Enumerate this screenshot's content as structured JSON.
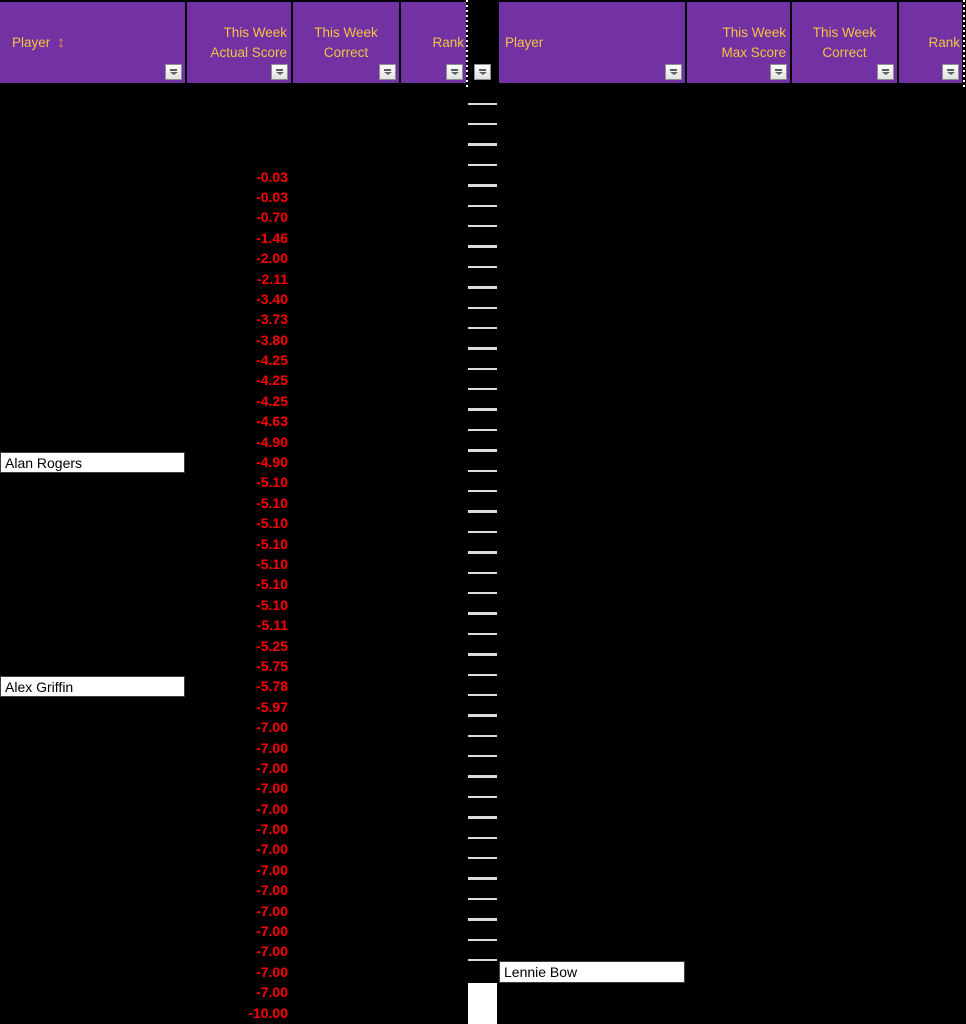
{
  "colors": {
    "background": "#000000",
    "header_bg": "#7232A3",
    "header_text": "#F5C242",
    "sort_arrow": "#E79B3C",
    "negative_score": "#FF0000",
    "player_cell_bg": "#FFFFFF",
    "player_cell_text": "#000000",
    "row_underline": "#DCDCDC"
  },
  "header": {
    "left": {
      "player_label": "Player",
      "sort_icon": "↕",
      "score_line1": "This Week",
      "score_line2": "Actual Score",
      "correct_line1": "This Week",
      "correct_line2": "Correct",
      "rank_label": "Rank"
    },
    "right": {
      "player_label": "Player",
      "score_line1": "This Week",
      "score_line2": "Max Score",
      "correct_line1": "This Week",
      "correct_line2": "Correct",
      "rank_label": "Rank"
    }
  },
  "grid": {
    "leading_empty_rows": 4,
    "scores": [
      "-0.03",
      "-0.03",
      "-0.70",
      "-1.46",
      "-2.00",
      "-2.11",
      "-3.40",
      "-3.73",
      "-3.80",
      "-4.25",
      "-4.25",
      "-4.25",
      "-4.63",
      "-4.90",
      "-4.90",
      "-5.10",
      "-5.10",
      "-5.10",
      "-5.10",
      "-5.10",
      "-5.10",
      "-5.10",
      "-5.11",
      "-5.25",
      "-5.75",
      "-5.78",
      "-5.97",
      "-7.00",
      "-7.00",
      "-7.00",
      "-7.00",
      "-7.00",
      "-7.00",
      "-7.00",
      "-7.00",
      "-7.00",
      "-7.00",
      "-7.00",
      "-7.00",
      "-7.00",
      "-7.00",
      "-10.00"
    ],
    "left_player_cells": [
      {
        "score_index": 15,
        "name": "Alan Rogers"
      },
      {
        "score_index": 26,
        "name": "Alex Griffin"
      }
    ],
    "right_player_cells": [
      {
        "score_index": 40,
        "name": "Lennie Bow"
      }
    ],
    "middle_column": {
      "underlined_rows": 43,
      "filled_bottom_rows": 2
    }
  }
}
